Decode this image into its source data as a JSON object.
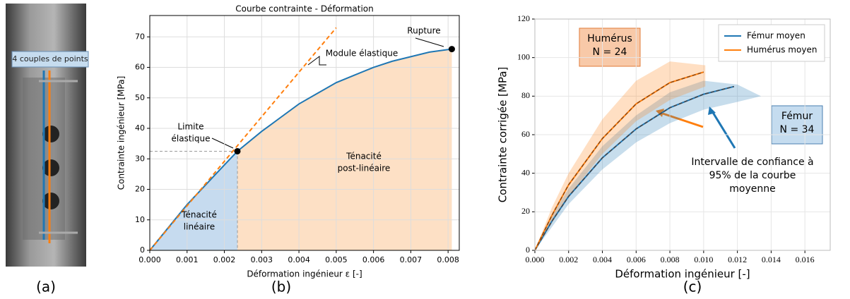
{
  "photo": {
    "annotation": "4 couples de points",
    "label": "(a)"
  },
  "chart_data": [
    {
      "type": "line",
      "label": "(b)",
      "title": "Courbe contrainte - Déformation",
      "xlabel": "Déformation ingénieur ε [-]",
      "ylabel": "Contrainte ingénieur [MPa]",
      "xlim": [
        0,
        0.0083
      ],
      "ylim": [
        0,
        77
      ],
      "xticks": [
        {
          "value": 0,
          "label": "0.000"
        },
        {
          "value": 0.001,
          "label": "0.001"
        },
        {
          "value": 0.002,
          "label": "0.002"
        },
        {
          "value": 0.003,
          "label": "0.003"
        },
        {
          "value": 0.004,
          "label": "0.004"
        },
        {
          "value": 0.005,
          "label": "0.005"
        },
        {
          "value": 0.006,
          "label": "0.006"
        },
        {
          "value": 0.007,
          "label": "0.007"
        },
        {
          "value": 0.008,
          "label": "0.008"
        }
      ],
      "yticks": [
        0,
        10,
        20,
        30,
        40,
        50,
        60,
        70
      ],
      "grid": true,
      "area_colors": [
        "#c6dbef",
        "#fde0c5"
      ],
      "series": [
        {
          "color": "#1f77b4",
          "x": [
            0,
            0.0005,
            0.001,
            0.0015,
            0.002,
            0.00235,
            0.003,
            0.0035,
            0.004,
            0.0045,
            0.005,
            0.0055,
            0.006,
            0.0065,
            0.007,
            0.0075,
            0.0081
          ],
          "values": [
            0,
            7.5,
            15,
            21.5,
            28,
            32.5,
            39,
            43.5,
            48,
            51.5,
            55,
            57.5,
            60,
            62,
            63.5,
            65,
            66
          ]
        },
        {
          "color": "#ff7f0e",
          "dashed": true,
          "x": [
            0,
            0.005
          ],
          "values": [
            0,
            73
          ]
        }
      ],
      "markers": {
        "color": "#000000",
        "x": [
          0.00235,
          0.0081
        ],
        "values": [
          32.5,
          66
        ]
      },
      "annotations": [
        [
          "Rupture"
        ],
        [
          "Module élastique"
        ],
        [
          "Limite",
          "élastique"
        ],
        [
          "Ténacité",
          "linéaire"
        ],
        [
          "Ténacité",
          "post-linéaire"
        ]
      ]
    },
    {
      "type": "line",
      "label": "(c)",
      "xlabel": "Déformation ingénieur [-]",
      "ylabel": "Contrainte corrigée [MPa]",
      "xlim": [
        0,
        0.0175
      ],
      "ylim": [
        0,
        120
      ],
      "xticks": [
        {
          "value": 0,
          "label": "0.000"
        },
        {
          "value": 0.002,
          "label": "0.002"
        },
        {
          "value": 0.004,
          "label": "0.004"
        },
        {
          "value": 0.006,
          "label": "0.006"
        },
        {
          "value": 0.008,
          "label": "0.008"
        },
        {
          "value": 0.01,
          "label": "0.010"
        },
        {
          "value": 0.012,
          "label": "0.012"
        },
        {
          "value": 0.014,
          "label": "0.014"
        },
        {
          "value": 0.016,
          "label": "0.016"
        }
      ],
      "yticks": [
        0,
        20,
        40,
        60,
        80,
        100,
        120
      ],
      "grid": true,
      "legend": "upper right",
      "series": [
        {
          "name": "Fémur moyen",
          "color": "#1f77b4",
          "x": [
            0,
            0.001,
            0.002,
            0.004,
            0.006,
            0.008,
            0.01,
            0.0118
          ],
          "values": [
            0,
            15,
            28,
            48,
            63,
            74,
            81,
            85
          ],
          "band": {
            "x": [
              0,
              0.001,
              0.002,
              0.004,
              0.006,
              0.008,
              0.01,
              0.012,
              0.0134
            ],
            "lower": [
              0,
              12,
              24,
              42,
              56,
              66,
              73,
              77,
              80
            ],
            "upper": [
              0,
              18,
              32,
              54,
              70,
              82,
              88,
              86,
              80
            ]
          }
        },
        {
          "name": "Humérus moyen",
          "color": "#ff7f0e",
          "x": [
            0,
            0.001,
            0.002,
            0.004,
            0.006,
            0.008,
            0.01
          ],
          "values": [
            0,
            18,
            34,
            58,
            76,
            87,
            92.5
          ],
          "band": {
            "x": [
              0,
              0.001,
              0.002,
              0.004,
              0.006,
              0.008,
              0.0101
            ],
            "lower": [
              0,
              14,
              28,
              50,
              67,
              78,
              85
            ],
            "upper": [
              0,
              22,
              40,
              68,
              88,
              98,
              96
            ]
          }
        }
      ],
      "annotations": [
        [
          "Humérus",
          "N = 24"
        ],
        [
          "Fémur",
          "N = 34"
        ],
        [
          "Intervalle de confiance à",
          "95% de la courbe",
          "moyenne"
        ]
      ]
    }
  ]
}
